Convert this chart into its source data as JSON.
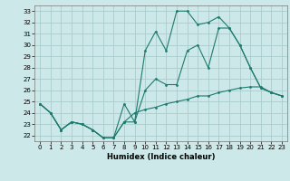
{
  "xlabel": "Humidex (Indice chaleur)",
  "background_color": "#cce8e8",
  "grid_color": "#aacccc",
  "line_color": "#1e7a6e",
  "xlim": [
    -0.5,
    23.5
  ],
  "ylim": [
    21.5,
    33.5
  ],
  "xticks": [
    0,
    1,
    2,
    3,
    4,
    5,
    6,
    7,
    8,
    9,
    10,
    11,
    12,
    13,
    14,
    15,
    16,
    17,
    18,
    19,
    20,
    21,
    22,
    23
  ],
  "yticks": [
    22,
    23,
    24,
    25,
    26,
    27,
    28,
    29,
    30,
    31,
    32,
    33
  ],
  "line1_x": [
    0,
    1,
    2,
    3,
    4,
    5,
    6,
    7,
    8,
    9,
    10,
    11,
    12,
    13,
    14,
    15,
    16,
    17,
    18,
    19,
    20,
    21,
    22,
    23
  ],
  "line1_y": [
    24.8,
    24.0,
    22.5,
    23.2,
    23.0,
    22.5,
    21.8,
    21.8,
    24.8,
    23.2,
    29.5,
    31.2,
    29.5,
    33.0,
    33.0,
    31.8,
    32.0,
    32.5,
    31.5,
    30.0,
    28.0,
    26.2,
    25.8,
    25.5
  ],
  "line2_x": [
    0,
    1,
    2,
    3,
    4,
    5,
    6,
    7,
    8,
    9,
    10,
    11,
    12,
    13,
    14,
    15,
    16,
    17,
    18,
    19,
    20,
    21,
    22,
    23
  ],
  "line2_y": [
    24.8,
    24.0,
    22.5,
    23.2,
    23.0,
    22.5,
    21.8,
    21.8,
    23.2,
    23.2,
    26.0,
    27.0,
    26.5,
    26.5,
    29.5,
    30.0,
    28.0,
    31.5,
    31.5,
    30.0,
    28.0,
    26.2,
    25.8,
    25.5
  ],
  "line3_x": [
    0,
    1,
    2,
    3,
    4,
    5,
    6,
    7,
    8,
    9,
    10,
    11,
    12,
    13,
    14,
    15,
    16,
    17,
    18,
    19,
    20,
    21,
    22,
    23
  ],
  "line3_y": [
    24.8,
    24.0,
    22.5,
    23.2,
    23.0,
    22.5,
    21.8,
    21.8,
    23.2,
    24.0,
    24.3,
    24.5,
    24.8,
    25.0,
    25.2,
    25.5,
    25.5,
    25.8,
    26.0,
    26.2,
    26.3,
    26.3,
    25.8,
    25.5
  ]
}
